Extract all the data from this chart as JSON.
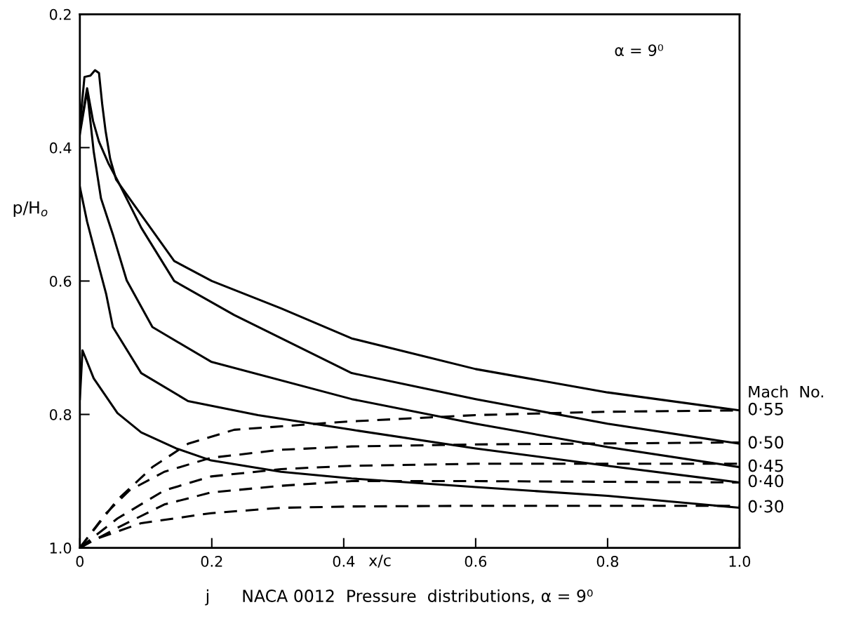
{
  "chart_data": {
    "type": "line",
    "title": "j      NACA 0012  Pressure  distributions, α = 9⁰",
    "xlabel": "x/c",
    "ylabel": "p/H$_{o}$",
    "annotations": [
      "α = 9⁰",
      "Mach  No."
    ],
    "xlim": [
      0,
      1.0
    ],
    "ylim": [
      1.0,
      0.2
    ],
    "xticks": [
      0,
      0.2,
      0.4,
      0.6,
      0.8,
      {
        "value": 1.0,
        "label": "1.0"
      }
    ],
    "yticks": [
      0.2,
      0.4,
      0.6,
      0.8,
      {
        "value": 1.0,
        "label": "1.0"
      }
    ],
    "grid": false,
    "marker": "none",
    "series": [
      {
        "name": "0·55",
        "color": "#000000",
        "line_style": "solid",
        "x": [
          0,
          0.007,
          0.016,
          0.023,
          0.029,
          0.034,
          0.039,
          0.046,
          0.055,
          0.078,
          0.143,
          0.2,
          0.305,
          0.412,
          0.6,
          0.8,
          1.0
        ],
        "values": [
          0.367,
          0.294,
          0.292,
          0.284,
          0.288,
          0.336,
          0.375,
          0.417,
          0.448,
          0.48,
          0.57,
          0.6,
          0.641,
          0.686,
          0.732,
          0.767,
          0.794
        ]
      },
      {
        "name": "0·50",
        "color": "#000000",
        "line_style": "solid",
        "x": [
          0,
          0.011,
          0.02,
          0.029,
          0.043,
          0.057,
          0.093,
          0.143,
          0.234,
          0.412,
          0.6,
          0.8,
          1.0
        ],
        "values": [
          0.375,
          0.311,
          0.36,
          0.391,
          0.423,
          0.449,
          0.52,
          0.6,
          0.651,
          0.738,
          0.777,
          0.814,
          0.844
        ]
      },
      {
        "name": "0·45",
        "color": "#000000",
        "line_style": "solid",
        "x": [
          0,
          0.011,
          0.021,
          0.032,
          0.05,
          0.071,
          0.11,
          0.199,
          0.412,
          0.6,
          0.8,
          1.0
        ],
        "values": [
          0.38,
          0.315,
          0.406,
          0.476,
          0.53,
          0.599,
          0.669,
          0.721,
          0.777,
          0.814,
          0.849,
          0.879
        ]
      },
      {
        "name": "0·40",
        "color": "#000000",
        "line_style": "solid",
        "x": [
          0,
          0.011,
          0.025,
          0.04,
          0.05,
          0.093,
          0.164,
          0.27,
          0.412,
          0.6,
          0.8,
          1.0
        ],
        "values": [
          0.459,
          0.511,
          0.564,
          0.62,
          0.669,
          0.738,
          0.78,
          0.801,
          0.823,
          0.851,
          0.877,
          0.902
        ]
      },
      {
        "name": "0·30",
        "color": "#000000",
        "line_style": "solid",
        "x": [
          0,
          0.004,
          0.021,
          0.057,
          0.093,
          0.146,
          0.199,
          0.305,
          0.412,
          0.6,
          0.8,
          1.0
        ],
        "values": [
          0.777,
          0.704,
          0.746,
          0.798,
          0.827,
          0.851,
          0.869,
          0.886,
          0.896,
          0.909,
          0.922,
          0.94
        ]
      },
      {
        "color": "#000000",
        "line_style": "dashed",
        "x": [
          0,
          0.057,
          0.11,
          0.164,
          0.234,
          0.401,
          0.6,
          0.8,
          1.0
        ],
        "values": [
          1.0,
          0.928,
          0.879,
          0.844,
          0.823,
          0.811,
          0.801,
          0.796,
          0.794
        ]
      },
      {
        "color": "#000000",
        "line_style": "dashed",
        "x": [
          0,
          0.039,
          0.075,
          0.128,
          0.199,
          0.305,
          0.412,
          0.6,
          1.0
        ],
        "values": [
          1.0,
          0.949,
          0.914,
          0.886,
          0.865,
          0.853,
          0.848,
          0.845,
          0.842
        ]
      },
      {
        "color": "#000000",
        "line_style": "dashed",
        "x": [
          0,
          0.057,
          0.128,
          0.199,
          0.305,
          0.412,
          0.6,
          1.0
        ],
        "values": [
          1.0,
          0.956,
          0.914,
          0.893,
          0.882,
          0.877,
          0.874,
          0.874
        ]
      },
      {
        "color": "#000000",
        "line_style": "dashed",
        "x": [
          0,
          0.057,
          0.128,
          0.199,
          0.305,
          0.412,
          0.6,
          1.0
        ],
        "values": [
          1.0,
          0.97,
          0.935,
          0.917,
          0.907,
          0.9,
          0.9,
          0.902
        ]
      },
      {
        "color": "#000000",
        "line_style": "dashed",
        "x": [
          0,
          0.021,
          0.093,
          0.199,
          0.305,
          0.412,
          0.6,
          1.0
        ],
        "values": [
          1.0,
          0.988,
          0.963,
          0.948,
          0.94,
          0.938,
          0.937,
          0.937
        ]
      }
    ]
  }
}
